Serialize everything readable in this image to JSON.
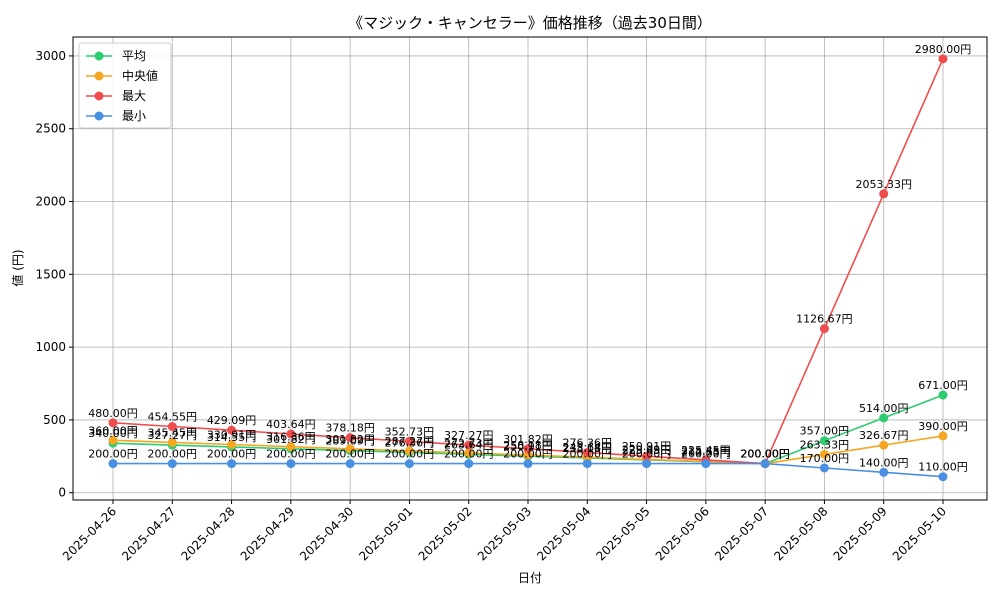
{
  "chart_data": {
    "type": "line",
    "title": "《マジック・キャンセラー》価格推移（過去30日間）",
    "xlabel": "日付",
    "ylabel": "値 (円)",
    "ylim": [
      -50,
      3130
    ],
    "yticks": [
      0,
      500,
      1000,
      1500,
      2000,
      2500,
      3000
    ],
    "ytick_labels": [
      "0",
      "500",
      "1000",
      "1500",
      "2000",
      "2500",
      "3000"
    ],
    "grid": true,
    "legend_position": "top-left",
    "categories": [
      "2025-04-26",
      "2025-04-27",
      "2025-04-28",
      "2025-04-29",
      "2025-04-30",
      "2025-05-01",
      "2025-05-02",
      "2025-05-03",
      "2025-05-04",
      "2025-05-05",
      "2025-05-06",
      "2025-05-07",
      "2025-05-08",
      "2025-05-09",
      "2025-05-10"
    ],
    "series": [
      {
        "name": "平均",
        "color": "#2ecc71",
        "values": [
          340.0,
          327.27,
          314.55,
          301.82,
          289.09,
          276.36,
          263.64,
          250.91,
          238.18,
          225.45,
          212.73,
          200.0,
          357.0,
          514.0,
          671.0
        ],
        "labels": [
          "340.00円",
          "327.27円",
          "314.55円",
          "301.82円",
          "289.09円",
          "276.36円",
          "263.64円",
          "250.91円",
          "238.18円",
          "225.45円",
          "212.73円",
          "200.00円",
          "357.00円",
          "514.00円",
          "671.00円"
        ]
      },
      {
        "name": "中央値",
        "color": "#f5a623",
        "values": [
          360.0,
          345.45,
          330.91,
          316.36,
          301.82,
          287.27,
          272.73,
          258.18,
          243.64,
          229.09,
          214.55,
          200.0,
          263.33,
          326.67,
          390.0
        ],
        "labels": [
          "360.00円",
          "345.45円",
          "330.91円",
          "316.36円",
          "301.82円",
          "287.27円",
          "272.73円",
          "258.18円",
          "243.64円",
          "229.09円",
          "214.55円",
          "200.00円",
          "263.33円",
          "326.67円",
          "390.00円"
        ]
      },
      {
        "name": "最大",
        "color": "#ef4d4d",
        "values": [
          480.0,
          454.55,
          429.09,
          403.64,
          378.18,
          352.73,
          327.27,
          301.82,
          276.36,
          250.91,
          225.45,
          200.0,
          1126.67,
          2053.33,
          2980.0
        ],
        "labels": [
          "480.00円",
          "454.55円",
          "429.09円",
          "403.64円",
          "378.18円",
          "352.73円",
          "327.27円",
          "301.82円",
          "276.36円",
          "250.91円",
          "225.45円",
          "200.00円",
          "1126.67円",
          "2053.33円",
          "2980.00円"
        ]
      },
      {
        "name": "最小",
        "color": "#4a90e2",
        "values": [
          200.0,
          200.0,
          200.0,
          200.0,
          200.0,
          200.0,
          200.0,
          200.0,
          200.0,
          200.0,
          200.0,
          200.0,
          170.0,
          140.0,
          110.0
        ],
        "labels": [
          "200.00円",
          "200.00円",
          "200.00円",
          "200.00円",
          "200.00円",
          "200.00円",
          "200.00円",
          "200.00円",
          "200.00円",
          "200.00円",
          "200.00円",
          "200.00円",
          "170.00円",
          "140.00円",
          "110.00円"
        ]
      }
    ]
  }
}
